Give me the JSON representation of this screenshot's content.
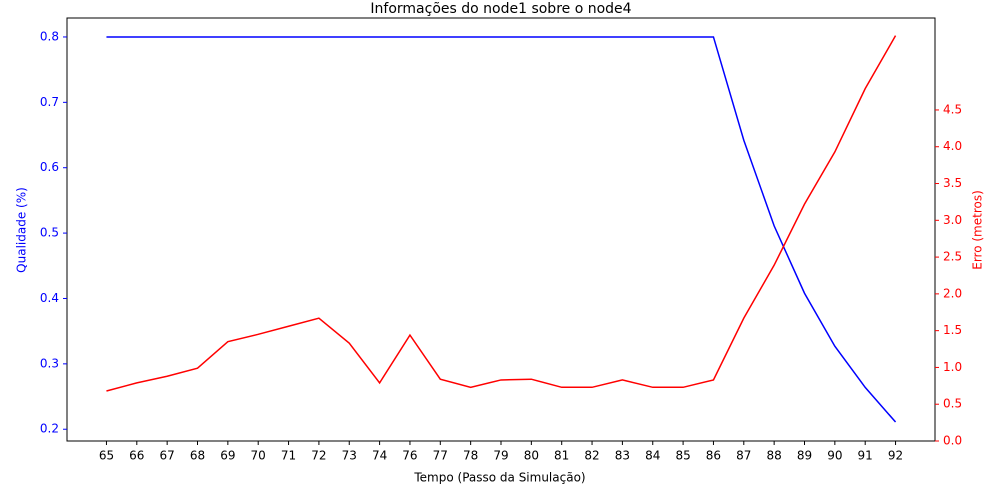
{
  "chart_data": {
    "type": "line",
    "title": "Informações do node1 sobre o node4",
    "xlabel": "Tempo (Passo da Simulação)",
    "ylabel": "Qualidade (%)",
    "y2label": "Erro (metros)",
    "ylabel_color": "blue",
    "y2label_color": "red",
    "categories": [
      "65",
      "66",
      "67",
      "68",
      "69",
      "70",
      "71",
      "72",
      "73",
      "74",
      "76",
      "77",
      "78",
      "79",
      "80",
      "81",
      "82",
      "83",
      "84",
      "85",
      "86",
      "87",
      "88",
      "89",
      "90",
      "91",
      "92"
    ],
    "series": [
      {
        "name": "Qualidade",
        "color": "blue",
        "axis": "y",
        "values": [
          0.8,
          0.8,
          0.8,
          0.8,
          0.8,
          0.8,
          0.8,
          0.8,
          0.8,
          0.8,
          0.8,
          0.8,
          0.8,
          0.8,
          0.8,
          0.8,
          0.8,
          0.8,
          0.8,
          0.8,
          0.8,
          0.642,
          0.511,
          0.408,
          0.327,
          0.264,
          0.211
        ]
      },
      {
        "name": "Erro",
        "color": "red",
        "axis": "y2",
        "values": [
          0.68,
          0.79,
          0.88,
          0.99,
          1.35,
          1.45,
          1.56,
          1.67,
          1.33,
          0.79,
          1.44,
          0.84,
          0.73,
          0.83,
          0.84,
          0.73,
          0.73,
          0.83,
          0.73,
          0.73,
          0.83,
          1.67,
          2.39,
          3.22,
          3.93,
          4.79,
          5.51
        ]
      }
    ],
    "ylim": [
      0.182,
      0.829
    ],
    "yticks": [
      0.2,
      0.3,
      0.4,
      0.5,
      0.6,
      0.7,
      0.8
    ],
    "y2lim": [
      0,
      5.75
    ],
    "y2ticks": [
      {
        "value": 0,
        "label": "0.0"
      },
      0.5,
      {
        "value": 1,
        "label": "1.0"
      },
      1.5,
      {
        "value": 2,
        "label": "2.0"
      },
      2.5,
      {
        "value": 3,
        "label": "3.0"
      },
      3.5,
      {
        "value": 4,
        "label": "4.0"
      },
      4.5
    ]
  }
}
